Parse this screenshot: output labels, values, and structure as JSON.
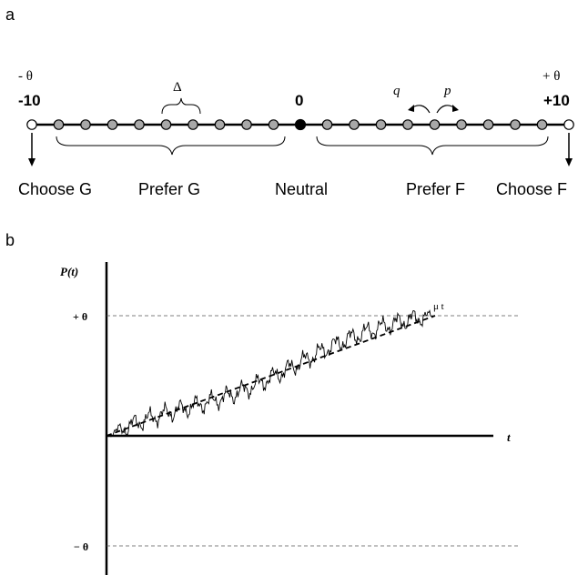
{
  "panel_a": {
    "label": "a",
    "left_threshold": "- θ",
    "right_threshold": "+ θ",
    "left_value": "-10",
    "center_value": "0",
    "right_value": "+10",
    "delta": "Δ",
    "q": "q",
    "p": "p",
    "choose_g": "Choose G",
    "prefer_g": "Prefer G",
    "neutral": "Neutral",
    "prefer_f": "Prefer F",
    "choose_f": "Choose F"
  },
  "panel_b": {
    "label": "b",
    "y_label": "P(t)",
    "x_label": "t",
    "pos_threshold": "+ θ",
    "neg_threshold": "− θ",
    "drift_label": "μ t"
  },
  "colors": {
    "state_fill": "#a8a8a8",
    "neutral_fill": "#000000",
    "boundary_fill": "#ffffff"
  }
}
